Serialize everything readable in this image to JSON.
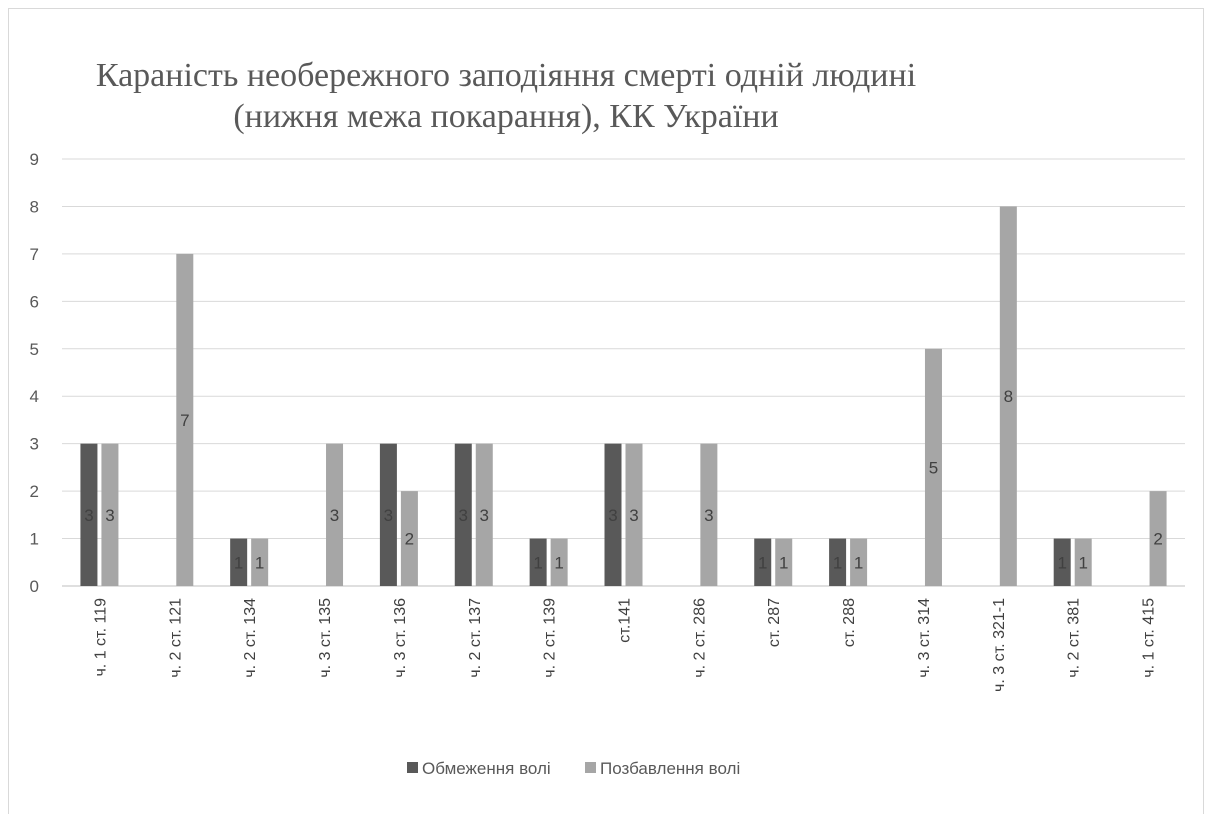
{
  "chart_data": {
    "type": "bar",
    "title": "Караність необережного заподіяння смерті одній людині (нижня межа покарання), КК України",
    "title_lines": [
      "Караність необережного заподіяння смерті одній людині",
      "(нижня межа покарання), КК України"
    ],
    "xlabel": "",
    "ylabel": "",
    "ylim": [
      0,
      9
    ],
    "yticks": [
      0,
      1,
      2,
      3,
      4,
      5,
      6,
      7,
      8,
      9
    ],
    "grid": true,
    "legend_position": "bottom",
    "categories": [
      "ч. 1 ст. 119",
      "ч. 2 ст. 121",
      "ч. 2 ст. 134",
      "ч. 3 ст. 135",
      "ч. 3 ст. 136",
      "ч. 2 ст. 137",
      "ч. 2 ст. 139",
      "ст.141",
      "ч. 2 ст. 286",
      "ст. 287",
      "ст. 288",
      "ч. 3 ст. 314",
      "ч. 3 ст. 321-1",
      "ч. 2 ст. 381",
      "ч. 1 ст. 415"
    ],
    "series": [
      {
        "name": "Обмеження волі",
        "color": "#595959",
        "values": [
          3,
          null,
          1,
          null,
          3,
          3,
          1,
          3,
          null,
          1,
          1,
          null,
          null,
          1,
          null
        ]
      },
      {
        "name": "Позбавлення волі",
        "color": "#a6a6a6",
        "values": [
          3,
          7,
          1,
          3,
          2,
          3,
          1,
          3,
          3,
          1,
          1,
          5,
          8,
          1,
          2
        ]
      }
    ]
  }
}
